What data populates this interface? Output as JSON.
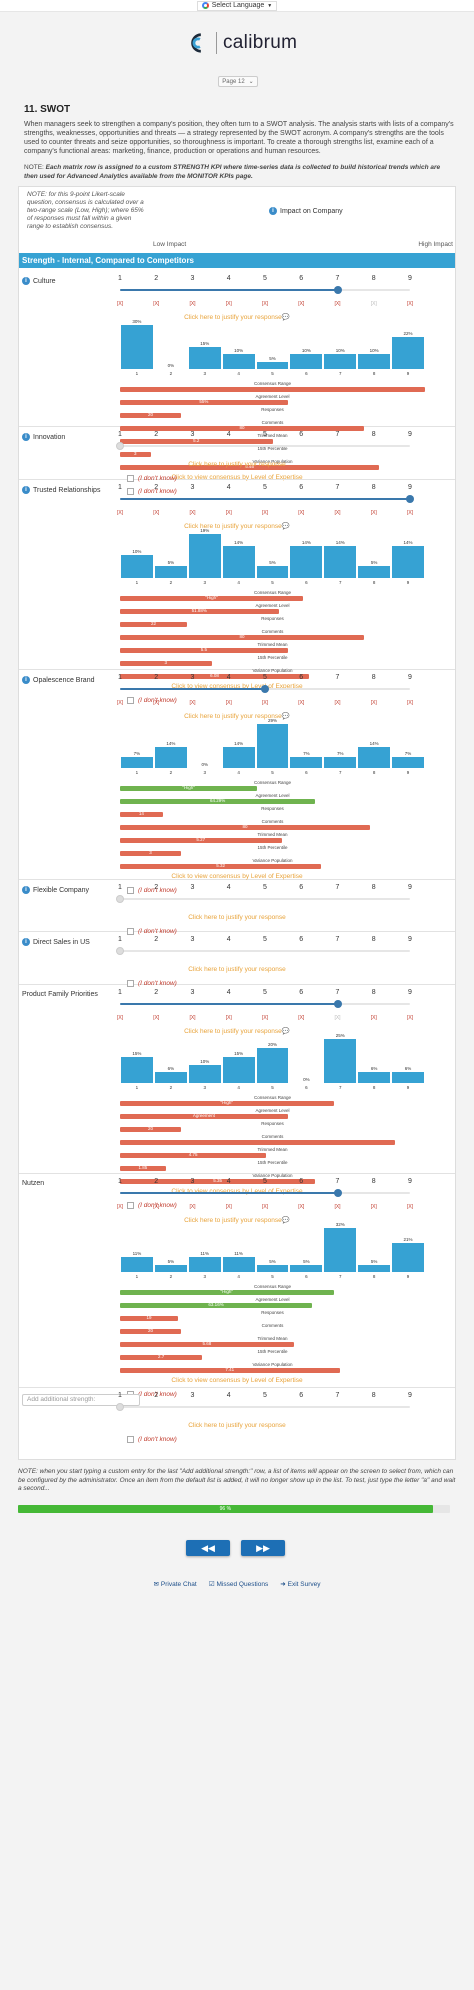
{
  "google_translate": {
    "label": "Select Language",
    "arrow": "▼"
  },
  "brand": {
    "name": "calibrum",
    "color": "#1c2a3a",
    "accent": "#3aa0d3"
  },
  "page_select": {
    "value": "Page 12",
    "arrow": "⌄"
  },
  "page_title": "11. SWOT",
  "intro_text": "When managers seek to strengthen a company's position, they often turn to a SWOT analysis. The analysis starts with lists of a company's strengths, weaknesses, opportunities and threats — a strategy represented by the SWOT acronym. A company's strengths are the tools used to counter threats and seize opportunities, so thoroughness is important. To create a thorough strengths list, examine each of a company's functional areas: marketing, finance, production or operations and human resources.",
  "note_prefix": "NOTE: ",
  "note_bold": "Each matrix row is assigned to a custom STRENGTH KPI where time-series data is collected to build historical trends which are then used for Advanced Analytics available from the MONITOR KPIs page.",
  "matrix_note": "NOTE: for this 9-point Likert-scale question, consensus is calculated over a two-range scale (Low, High); where 65% of responses must fall within a given range to establish consensus.",
  "impact_label": "Impact on Company",
  "low_label": "Low Impact",
  "high_label": "High Impact",
  "section_title": "Strength - Internal, Compared to Competitors",
  "scale": [
    "1",
    "2",
    "3",
    "4",
    "5",
    "6",
    "7",
    "8",
    "9"
  ],
  "x_mark": "[X]",
  "justify_text": "Click here to justify your response",
  "justify_icon": "💬",
  "consensus_link": "Click to view consensus by Level of Expertise",
  "idk_label": "(I don't know)",
  "stat_titles": [
    "Consensus Range",
    "Agreement Level",
    "Responses",
    "Comments",
    "Trimmed Mean",
    "15th Percentile",
    "Variance Population"
  ],
  "rows": [
    {
      "label": "Culture",
      "info": true,
      "selected": 7,
      "marks": [
        true,
        true,
        true,
        true,
        true,
        true,
        true,
        false,
        true
      ],
      "hist": [
        {
          "cat": "1",
          "pct": "30%",
          "v": 30
        },
        {
          "cat": "2",
          "pct": "0%",
          "v": 0
        },
        {
          "cat": "3",
          "pct": "15%",
          "v": 15
        },
        {
          "cat": "4",
          "pct": "10%",
          "v": 10
        },
        {
          "cat": "5",
          "pct": "5%",
          "v": 5
        },
        {
          "cat": "6",
          "pct": "10%",
          "v": 10
        },
        {
          "cat": "7",
          "pct": "10%",
          "v": 10
        },
        {
          "cat": "8",
          "pct": "10%",
          "v": 10
        },
        {
          "cat": "9",
          "pct": "22%",
          "v": 22
        }
      ],
      "stats": [
        {
          "t": "",
          "v": 1.0,
          "green": false
        },
        {
          "t": "55%",
          "v": 0.55,
          "green": false
        },
        {
          "t": "20",
          "v": 0.2,
          "green": false
        },
        {
          "t": "80",
          "v": 0.8,
          "green": false
        },
        {
          "t": "5.2",
          "v": 0.5,
          "green": false
        },
        {
          "t": "3",
          "v": 0.1,
          "green": false
        },
        {
          "t": "6.46",
          "v": 0.85,
          "green": false
        }
      ]
    },
    {
      "label": "Innovation",
      "info": true,
      "selected": 0,
      "marks": [],
      "hist": [],
      "stats": []
    },
    {
      "label": "Trusted Relationships",
      "info": true,
      "selected": 9,
      "marks": [
        true,
        true,
        true,
        true,
        true,
        true,
        true,
        true,
        true
      ],
      "hist": [
        {
          "cat": "1",
          "pct": "10%",
          "v": 10
        },
        {
          "cat": "2",
          "pct": "5%",
          "v": 5
        },
        {
          "cat": "3",
          "pct": "19%",
          "v": 19
        },
        {
          "cat": "4",
          "pct": "14%",
          "v": 14
        },
        {
          "cat": "5",
          "pct": "5%",
          "v": 5
        },
        {
          "cat": "6",
          "pct": "14%",
          "v": 14
        },
        {
          "cat": "7",
          "pct": "14%",
          "v": 14
        },
        {
          "cat": "8",
          "pct": "5%",
          "v": 5
        },
        {
          "cat": "9",
          "pct": "14%",
          "v": 14
        }
      ],
      "stats": [
        {
          "t": "\"High\"",
          "v": 0.6,
          "green": false
        },
        {
          "t": "51.88%",
          "v": 0.52,
          "green": false
        },
        {
          "t": "22",
          "v": 0.22,
          "green": false
        },
        {
          "t": "80",
          "v": 0.8,
          "green": false
        },
        {
          "t": "5.5",
          "v": 0.55,
          "green": false
        },
        {
          "t": "3",
          "v": 0.3,
          "green": false
        },
        {
          "t": "6.08",
          "v": 0.62,
          "green": false
        }
      ]
    },
    {
      "label": "Opalescence Brand",
      "info": true,
      "selected": 5,
      "marks": [
        true,
        true,
        true,
        true,
        true,
        true,
        true,
        true,
        true
      ],
      "hist": [
        {
          "cat": "1",
          "pct": "7%",
          "v": 7
        },
        {
          "cat": "2",
          "pct": "14%",
          "v": 14
        },
        {
          "cat": "3",
          "pct": "0%",
          "v": 0
        },
        {
          "cat": "4",
          "pct": "14%",
          "v": 14
        },
        {
          "cat": "5",
          "pct": "29%",
          "v": 29
        },
        {
          "cat": "6",
          "pct": "7%",
          "v": 7
        },
        {
          "cat": "7",
          "pct": "7%",
          "v": 7
        },
        {
          "cat": "8",
          "pct": "14%",
          "v": 14
        },
        {
          "cat": "9",
          "pct": "7%",
          "v": 7
        }
      ],
      "stats": [
        {
          "t": "\"High\"",
          "v": 0.45,
          "green": true
        },
        {
          "t": "64.29%",
          "v": 0.64,
          "green": true
        },
        {
          "t": "14",
          "v": 0.14,
          "green": false
        },
        {
          "t": "80",
          "v": 0.82,
          "green": false
        },
        {
          "t": "5.27",
          "v": 0.53,
          "green": false
        },
        {
          "t": "3",
          "v": 0.2,
          "green": false
        },
        {
          "t": "5.32",
          "v": 0.66,
          "green": false
        }
      ]
    },
    {
      "label": "Flexible Company",
      "info": true,
      "selected": 0,
      "marks": [],
      "hist": [],
      "stats": []
    },
    {
      "label": "Direct Sales in US",
      "info": true,
      "selected": 0,
      "marks": [],
      "hist": [],
      "stats": []
    },
    {
      "label": "Product Family Priorities",
      "info": false,
      "selected": 7,
      "marks": [
        true,
        true,
        true,
        true,
        true,
        true,
        false,
        true,
        true
      ],
      "hist": [
        {
          "cat": "1",
          "pct": "15%",
          "v": 15
        },
        {
          "cat": "2",
          "pct": "6%",
          "v": 6
        },
        {
          "cat": "3",
          "pct": "10%",
          "v": 10
        },
        {
          "cat": "4",
          "pct": "15%",
          "v": 15
        },
        {
          "cat": "5",
          "pct": "20%",
          "v": 20
        },
        {
          "cat": "6",
          "pct": "0%",
          "v": 0
        },
        {
          "cat": "7",
          "pct": "25%",
          "v": 25
        },
        {
          "cat": "8",
          "pct": "6%",
          "v": 6
        },
        {
          "cat": "9",
          "pct": "6%",
          "v": 6
        }
      ],
      "stats": [
        {
          "t": "\"High\"",
          "v": 0.7,
          "green": false
        },
        {
          "t": "Agreement",
          "v": 0.55,
          "green": false
        },
        {
          "t": "20",
          "v": 0.2,
          "green": false
        },
        {
          "t": "",
          "v": 0.9,
          "green": false
        },
        {
          "t": "4.75",
          "v": 0.48,
          "green": false
        },
        {
          "t": "1.85",
          "v": 0.15,
          "green": false
        },
        {
          "t": "5.35",
          "v": 0.64,
          "green": false
        }
      ]
    },
    {
      "label": "Nutzen",
      "info": false,
      "selected": 7,
      "marks": [
        true,
        true,
        true,
        true,
        true,
        true,
        true,
        true,
        true
      ],
      "hist": [
        {
          "cat": "1",
          "pct": "11%",
          "v": 11
        },
        {
          "cat": "2",
          "pct": "5%",
          "v": 5
        },
        {
          "cat": "3",
          "pct": "11%",
          "v": 11
        },
        {
          "cat": "4",
          "pct": "11%",
          "v": 11
        },
        {
          "cat": "5",
          "pct": "5%",
          "v": 5
        },
        {
          "cat": "6",
          "pct": "5%",
          "v": 5
        },
        {
          "cat": "7",
          "pct": "32%",
          "v": 32
        },
        {
          "cat": "8",
          "pct": "5%",
          "v": 5
        },
        {
          "cat": "9",
          "pct": "21%",
          "v": 21
        }
      ],
      "stats": [
        {
          "t": "\"High\"",
          "v": 0.7,
          "green": true
        },
        {
          "t": "63.16%",
          "v": 0.63,
          "green": true
        },
        {
          "t": "19",
          "v": 0.19,
          "green": false
        },
        {
          "t": "20",
          "v": 0.2,
          "green": false
        },
        {
          "t": "5.68",
          "v": 0.57,
          "green": false
        },
        {
          "t": "2.7",
          "v": 0.27,
          "green": false
        },
        {
          "t": "7.41",
          "v": 0.72,
          "green": false
        }
      ]
    }
  ],
  "add_placeholder": "Add additional strength:",
  "footer_note": "NOTE: when you start typing a custom entry for the last \"Add additional strength:\" row, a list of items will appear on the screen to select from, which can be configured by the administrator. Once an item from the default list is added, it will no longer show up in the list. To test, just type the letter \"a\" and wait a second...",
  "progress": {
    "label": "96 %",
    "value": 0.96
  },
  "nav": {
    "back": "◀◀",
    "next": "▶▶"
  },
  "links": {
    "chat": "Private Chat",
    "missed": "Missed Questions",
    "exit": "Exit Survey"
  },
  "colors": {
    "section": "#36a2d3",
    "bar": "#36a2d3",
    "stat_red": "#e06a53",
    "stat_green": "#6fb34f",
    "justify": "#e8a33a",
    "idk": "#c0392b",
    "progress": "#45b836",
    "nav": "#1d6fb5"
  }
}
